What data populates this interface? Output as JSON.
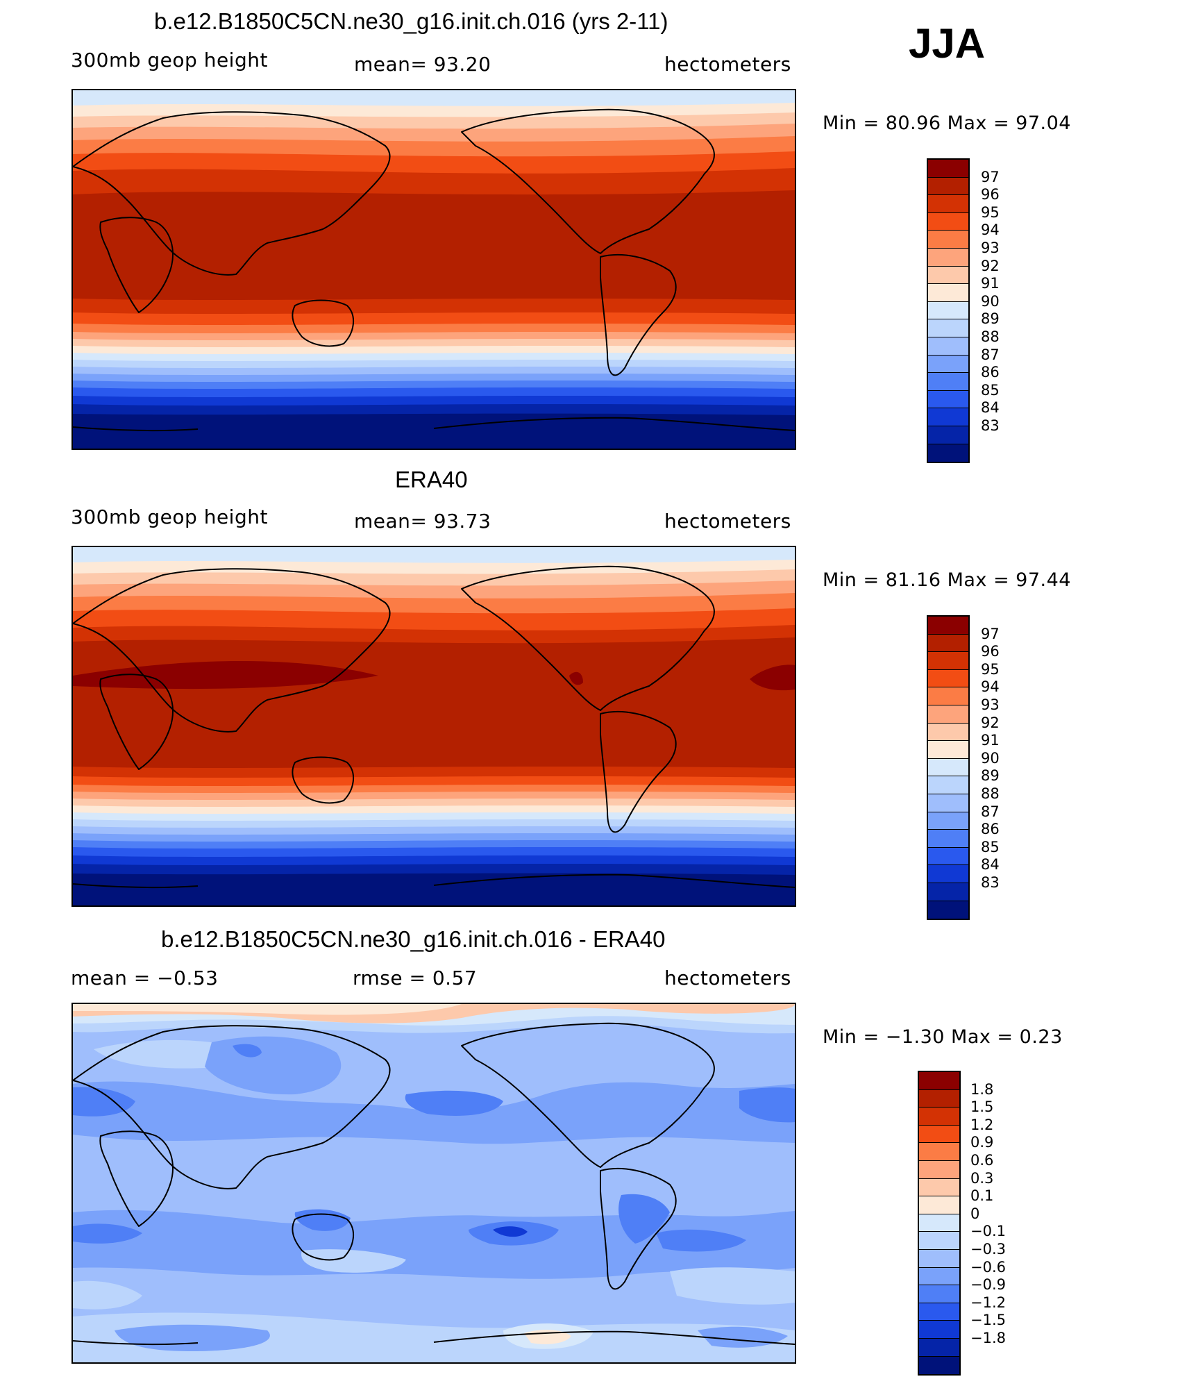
{
  "header": {
    "season": "JJA"
  },
  "panels": [
    {
      "id": "model",
      "title": "b.e12.B1850C5CN.ne30_g16.init.ch.016 (yrs 2-11)",
      "left_label": "300mb  geop  height",
      "center_label": "mean=   93.20",
      "right_label": "hectometers",
      "minmax_label": "Min  =    80.96  Max  =    97.04"
    },
    {
      "id": "obs",
      "title": "ERA40",
      "left_label": "300mb  geop  height",
      "center_label": "mean=   93.73",
      "right_label": "hectometers",
      "minmax_label": "Min  =    81.16  Max  =    97.44"
    },
    {
      "id": "diff",
      "title": "b.e12.B1850C5CN.ne30_g16.init.ch.016 - ERA40",
      "left_label": "mean  =    −0.53",
      "center_label": "rmse  =     0.57",
      "right_label": "hectometers",
      "minmax_label": "Min  =    −1.30  Max  =     0.23"
    }
  ],
  "colorbars": {
    "height": {
      "colors": [
        "#8b0000",
        "#b32000",
        "#d33204",
        "#f24d14",
        "#fb7c45",
        "#fda47c",
        "#fdc9ab",
        "#fde9d7",
        "#d6e8fb",
        "#bbd5fc",
        "#9fbefc",
        "#7aa2fa",
        "#4f7ff6",
        "#2a59ee",
        "#1039d4",
        "#0524a8",
        "#00127a"
      ],
      "labels": [
        "97",
        "96",
        "95",
        "94",
        "93",
        "92",
        "91",
        "90",
        "89",
        "88",
        "87",
        "86",
        "85",
        "84",
        "83"
      ]
    },
    "diff": {
      "colors": [
        "#8b0000",
        "#b32000",
        "#d33204",
        "#f24d14",
        "#fb7c45",
        "#fda47c",
        "#fdc9ab",
        "#fde9d7",
        "#d6e8fb",
        "#bbd5fc",
        "#9fbefc",
        "#7aa2fa",
        "#4f7ff6",
        "#2a59ee",
        "#1039d4",
        "#0524a8",
        "#00127a"
      ],
      "labels": [
        "1.8",
        "1.5",
        "1.2",
        "0.9",
        "0.6",
        "0.3",
        "0.1",
        "0",
        "−0.1",
        "−0.3",
        "−0.6",
        "−0.9",
        "−1.2",
        "−1.5",
        "−1.8"
      ]
    }
  }
}
